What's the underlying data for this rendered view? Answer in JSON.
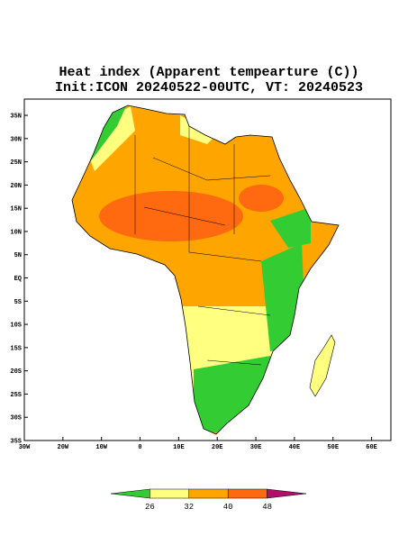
{
  "chart_data": {
    "type": "map",
    "title": "Heat index (Apparent tempearture (C))",
    "subtitle": "Init:ICON 20240522-00UTC, VT: 20240523",
    "xlim": [
      -30,
      65
    ],
    "ylim": [
      -35,
      38.5
    ],
    "xticks": [
      {
        "value": -30,
        "label": "30W"
      },
      {
        "value": -20,
        "label": "20W"
      },
      {
        "value": -10,
        "label": "10W"
      },
      0,
      {
        "value": 10,
        "label": "10E"
      },
      {
        "value": 20,
        "label": "20E"
      },
      {
        "value": 30,
        "label": "30E"
      },
      {
        "value": 40,
        "label": "40E"
      },
      {
        "value": 50,
        "label": "50E"
      },
      {
        "value": 60,
        "label": "60E"
      }
    ],
    "yticks": [
      {
        "value": 35,
        "label": "35N"
      },
      {
        "value": 30,
        "label": "30N"
      },
      {
        "value": 25,
        "label": "25N"
      },
      {
        "value": 20,
        "label": "20N"
      },
      {
        "value": 15,
        "label": "15N"
      },
      {
        "value": 10,
        "label": "10N"
      },
      {
        "value": 5,
        "label": "5N"
      },
      {
        "value": 0,
        "label": "EQ"
      },
      {
        "value": -5,
        "label": "5S"
      },
      {
        "value": -10,
        "label": "10S"
      },
      {
        "value": -15,
        "label": "15S"
      },
      {
        "value": -20,
        "label": "20S"
      },
      {
        "value": -25,
        "label": "25S"
      },
      {
        "value": -30,
        "label": "30S"
      },
      {
        "value": -35,
        "label": "35S"
      }
    ],
    "colorbar": {
      "ticks": [
        26,
        32,
        40,
        48
      ],
      "colors": [
        "#33cc33",
        "#ffff80",
        "#ffa500",
        "#ff6a10",
        "#b0106a"
      ]
    }
  }
}
